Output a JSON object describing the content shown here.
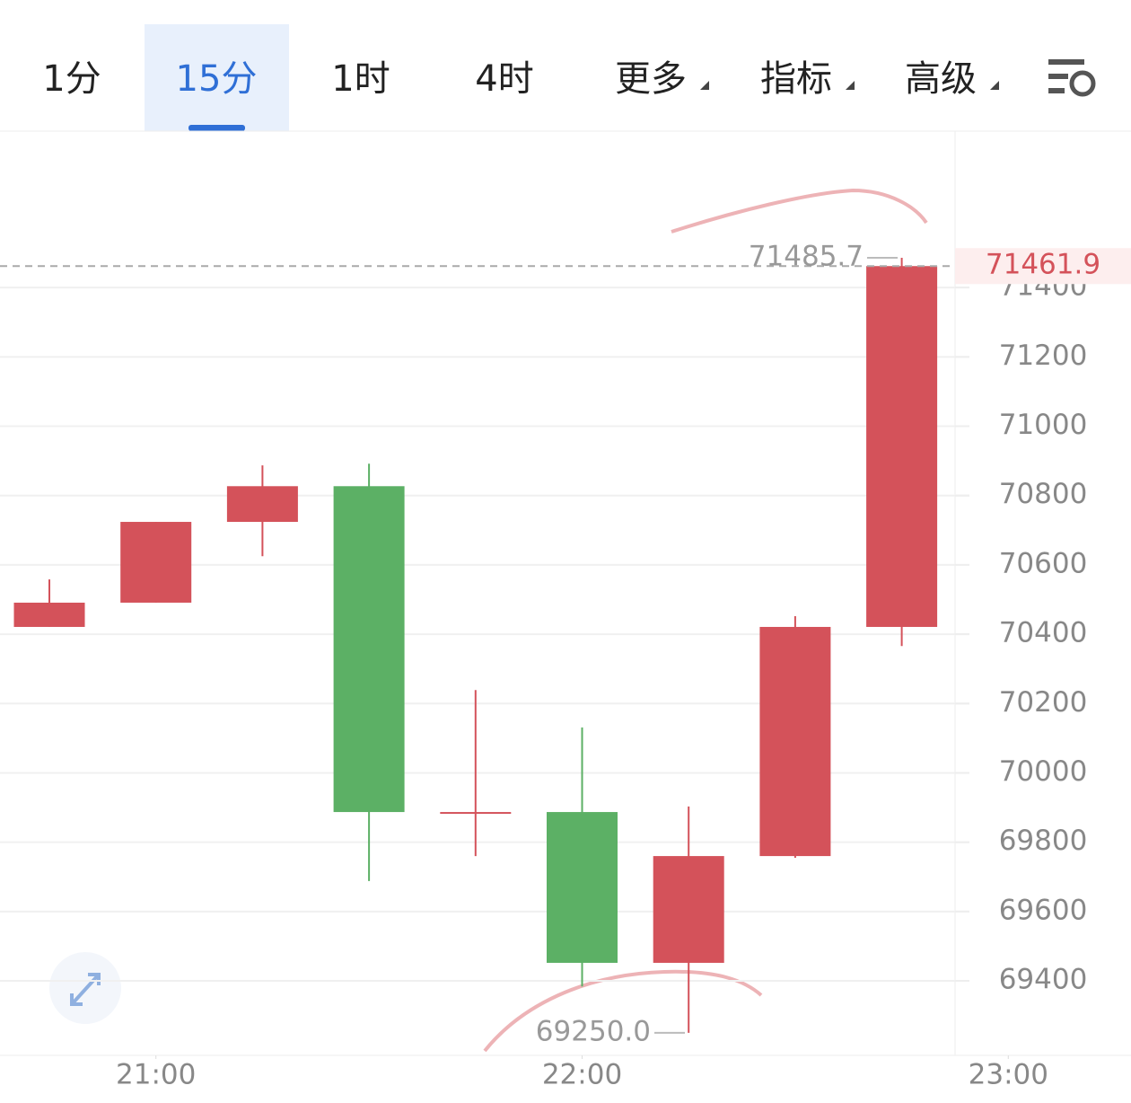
{
  "tabs": [
    "1分",
    "15分",
    "1时",
    "4时",
    "更多",
    "指标",
    "高级"
  ],
  "active_tab": 1,
  "chart_data": {
    "type": "candlestick",
    "candles": [
      {
        "open": 70421,
        "close": 70491,
        "high": 70558,
        "low": 70421
      },
      {
        "open": 70491,
        "close": 70724,
        "high": 70724,
        "low": 70491
      },
      {
        "open": 70724,
        "close": 70827,
        "high": 70887,
        "low": 70625
      },
      {
        "open": 70827,
        "close": 69887,
        "high": 70892,
        "low": 69688
      },
      {
        "open": 69887,
        "close": 69887,
        "high": 70239,
        "low": 69760
      },
      {
        "open": 69887,
        "close": 69452,
        "high": 70131,
        "low": 69384
      },
      {
        "open": 69452,
        "close": 69760,
        "high": 69903,
        "low": 69250.0
      },
      {
        "open": 69760,
        "close": 70421,
        "high": 70452,
        "low": 69755
      },
      {
        "open": 70421,
        "close": 71461.9,
        "high": 71485.7,
        "low": 70366
      }
    ],
    "up_color": "#d4525a",
    "down_color": "#5cb065",
    "ylim": [
      69185,
      71846
    ],
    "yticks": [
      69400,
      69600,
      69800,
      70000,
      70200,
      70400,
      70600,
      70800,
      71000,
      71200,
      71400
    ],
    "xticks": [
      {
        "value": 1,
        "label": "21:00"
      },
      {
        "value": 5,
        "label": "22:00"
      },
      {
        "value": 9,
        "label": "23:00"
      }
    ],
    "last_price": {
      "value": 71461.9,
      "label": "71461.9"
    },
    "annotations": [
      {
        "value": 71485.7,
        "label": "71485.7"
      },
      {
        "value": 69250.0,
        "label": "69250.0"
      }
    ],
    "grid": true
  }
}
